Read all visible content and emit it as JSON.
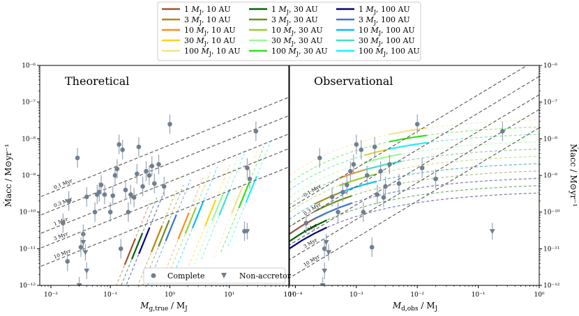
{
  "chart_data": [
    {
      "type": "scatter",
      "title": "Theoretical",
      "xlabel": "M_g,true / M_J",
      "ylabel": "Ṁ_acc / M_⊙yr⁻¹",
      "xscale": "log",
      "yscale": "log",
      "xlim": [
        0.0065,
        100
      ],
      "ylim": [
        1e-12,
        1e-06
      ],
      "x_tick_labels": [
        "10⁻²",
        "10⁻¹",
        "10⁰",
        "10¹",
        "10²"
      ],
      "x_tick_values": [
        0.01,
        0.1,
        1,
        10,
        100
      ],
      "y_tick_labels": [
        "10⁻¹²",
        "10⁻¹¹",
        "10⁻¹⁰",
        "10⁻⁹",
        "10⁻⁸",
        "10⁻⁷",
        "10⁻⁶"
      ],
      "y_tick_values": [
        1e-12,
        1e-11,
        1e-10,
        1e-09,
        1e-08,
        1e-07,
        1e-06
      ],
      "age_lines": [
        {
          "label": "0.1 Myr",
          "logx0": -2.2,
          "logy0": -9.6
        },
        {
          "label": "0.3 Myr",
          "logx0": -2.2,
          "logy0": -10.1
        },
        {
          "label": "1 Myr",
          "logx0": -2.2,
          "logy0": -10.6
        },
        {
          "label": "3 Myr",
          "logx0": -2.2,
          "logy0": -11.0
        },
        {
          "label": "10 Myr",
          "logx0": -2.2,
          "logy0": -11.5
        }
      ],
      "age_line_slope": 0.65,
      "complete_points": [
        {
          "x": 0.016,
          "y": 5e-11
        },
        {
          "x": 0.019,
          "y": 4.5e-12
        },
        {
          "x": 0.02,
          "y": 2e-10
        },
        {
          "x": 0.028,
          "y": 3e-09
        },
        {
          "x": 0.032,
          "y": 1.1e-11
        },
        {
          "x": 0.035,
          "y": 2.5e-11
        },
        {
          "x": 0.04,
          "y": 2.6e-10
        },
        {
          "x": 0.055,
          "y": 1e-10
        },
        {
          "x": 0.06,
          "y": 3e-10
        },
        {
          "x": 0.065,
          "y": 3.5e-10
        },
        {
          "x": 0.07,
          "y": 5.5e-10
        },
        {
          "x": 0.08,
          "y": 3e-10
        },
        {
          "x": 0.1,
          "y": 1e-10
        },
        {
          "x": 0.11,
          "y": 2.8e-10
        },
        {
          "x": 0.12,
          "y": 1e-09
        },
        {
          "x": 0.13,
          "y": 1.5e-09
        },
        {
          "x": 0.14,
          "y": 7e-09
        },
        {
          "x": 0.15,
          "y": 1e-11
        },
        {
          "x": 0.16,
          "y": 5e-09
        },
        {
          "x": 0.18,
          "y": 4e-10
        },
        {
          "x": 0.2,
          "y": 1e-10
        },
        {
          "x": 0.22,
          "y": 3e-10
        },
        {
          "x": 0.25,
          "y": 2.5e-10
        },
        {
          "x": 0.3,
          "y": 6e-09
        },
        {
          "x": 0.35,
          "y": 5e-10
        },
        {
          "x": 0.4,
          "y": 1.3e-09
        },
        {
          "x": 0.5,
          "y": 1.8e-09
        },
        {
          "x": 0.55,
          "y": 6e-10
        },
        {
          "x": 0.65,
          "y": 2e-09
        },
        {
          "x": 0.8,
          "y": 5e-10
        },
        {
          "x": 1.0,
          "y": 2.5e-08
        },
        {
          "x": 0.45,
          "y": 1e-09
        },
        {
          "x": 0.28,
          "y": 1.1e-09
        },
        {
          "x": 20,
          "y": 1.6e-09
        },
        {
          "x": 22,
          "y": 8e-10
        },
        {
          "x": 18,
          "y": 3e-11
        },
        {
          "x": 28,
          "y": 1.6e-08
        }
      ],
      "nonaccretor_points": [
        {
          "x": 0.03,
          "y": 1e-12
        },
        {
          "x": 0.035,
          "y": 1.5e-11
        },
        {
          "x": 0.038,
          "y": 8e-12
        },
        {
          "x": 0.04,
          "y": 2.5e-12
        },
        {
          "x": 20,
          "y": 3e-11
        }
      ],
      "legend": {
        "location": "lower right",
        "entries": [
          "Complete",
          "Non-accretor"
        ]
      }
    },
    {
      "type": "scatter",
      "title": "Observational",
      "xlabel": "M_d,obs / M_J",
      "ylabel": "Ṁ_acc / M_⊙yr⁻¹",
      "xscale": "log",
      "yscale": "log",
      "xlim": [
        8e-05,
        1
      ],
      "ylim": [
        1e-12,
        1e-06
      ],
      "x_tick_labels": [
        "10⁻⁴",
        "10⁻³",
        "10⁻²",
        "10⁻¹",
        "10⁰"
      ],
      "x_tick_values": [
        0.0001,
        0.001,
        0.01,
        0.1,
        1
      ],
      "y_tick_labels": [
        "10⁻¹²",
        "10⁻¹¹",
        "10⁻¹⁰",
        "10⁻⁹",
        "10⁻⁸",
        "10⁻⁷",
        "10⁻⁶"
      ],
      "y_tick_values": [
        1e-12,
        1e-11,
        1e-10,
        1e-09,
        1e-08,
        1e-07,
        1e-06
      ],
      "age_lines": [
        {
          "label": "0.1 Myr",
          "logx0": -4.1,
          "logy0": -9.9
        },
        {
          "label": "0.3 Myr",
          "logx0": -4.1,
          "logy0": -10.4
        },
        {
          "label": "1 Myr",
          "logx0": -4.1,
          "logy0": -10.9
        },
        {
          "label": "3 Myr",
          "logx0": -4.1,
          "logy0": -11.3
        },
        {
          "label": "10 Myr",
          "logx0": -4.1,
          "logy0": -11.8
        }
      ],
      "age_line_slope": 1.0,
      "complete_points": [
        {
          "x": 0.00015,
          "y": 5e-11
        },
        {
          "x": 0.00025,
          "y": 3e-09
        },
        {
          "x": 0.0003,
          "y": 1e-11
        },
        {
          "x": 0.0004,
          "y": 2.6e-10
        },
        {
          "x": 0.0005,
          "y": 1e-10
        },
        {
          "x": 0.0006,
          "y": 3.5e-10
        },
        {
          "x": 0.0007,
          "y": 5.5e-10
        },
        {
          "x": 0.0008,
          "y": 1.3e-09
        },
        {
          "x": 0.0009,
          "y": 2e-09
        },
        {
          "x": 0.001,
          "y": 7e-09
        },
        {
          "x": 0.0012,
          "y": 5e-09
        },
        {
          "x": 0.0015,
          "y": 1e-09
        },
        {
          "x": 0.0018,
          "y": 1.1e-11
        },
        {
          "x": 0.002,
          "y": 6e-09
        },
        {
          "x": 0.0025,
          "y": 1.3e-09
        },
        {
          "x": 0.003,
          "y": 5e-10
        },
        {
          "x": 0.0035,
          "y": 2e-09
        },
        {
          "x": 0.005,
          "y": 6e-10
        },
        {
          "x": 0.01,
          "y": 2.5e-08
        },
        {
          "x": 0.012,
          "y": 1.6e-09
        },
        {
          "x": 0.02,
          "y": 8e-10
        },
        {
          "x": 0.25,
          "y": 1.6e-08
        },
        {
          "x": 0.0022,
          "y": 3e-10
        },
        {
          "x": 0.0028,
          "y": 2.5e-10
        },
        {
          "x": 0.0013,
          "y": 1e-10
        }
      ],
      "nonaccretor_points": [
        {
          "x": 0.00028,
          "y": 1e-12
        },
        {
          "x": 0.00032,
          "y": 1.5e-11
        },
        {
          "x": 0.00035,
          "y": 8e-12
        },
        {
          "x": 0.0003,
          "y": 2.5e-12
        },
        {
          "x": 0.17,
          "y": 3e-11
        }
      ]
    }
  ],
  "legend": {
    "entries": [
      {
        "label": "1 M_J, 10 AU",
        "color": "#a0522d"
      },
      {
        "label": "3 M_J, 10 AU",
        "color": "#b8860b"
      },
      {
        "label": "10 M_J, 10 AU",
        "color": "#ff8c1a"
      },
      {
        "label": "30 M_J, 10 AU",
        "color": "#ffd21a"
      },
      {
        "label": "100 M_J, 10 AU",
        "color": "#f6e08e"
      },
      {
        "label": "1 M_J, 30 AU",
        "color": "#006400"
      },
      {
        "label": "3 M_J, 30 AU",
        "color": "#6b8e23"
      },
      {
        "label": "10 M_J, 30 AU",
        "color": "#9acd32"
      },
      {
        "label": "30 M_J, 30 AU",
        "color": "#98fb98"
      },
      {
        "label": "100 M_J, 30 AU",
        "color": "#32e01a"
      },
      {
        "label": "1 M_J, 100 AU",
        "color": "#00008b"
      },
      {
        "label": "3 M_J, 100 AU",
        "color": "#3a73d8"
      },
      {
        "label": "10 M_J, 100 AU",
        "color": "#00bfff"
      },
      {
        "label": "30 M_J, 100 AU",
        "color": "#40e0d0"
      },
      {
        "label": "100 M_J, 100 AU",
        "color": "#1af0ff"
      }
    ]
  },
  "point_legend": {
    "complete": "Complete",
    "nonaccretor": "Non-accretor"
  },
  "labels": {
    "left_title": "Theoretical",
    "right_title": "Observational",
    "left_xlabel_main": "M",
    "left_xlabel_sub": "g,true",
    "left_xlabel_tail": " / M",
    "left_xlabel_sub2": "J",
    "right_xlabel_main": "M",
    "right_xlabel_sub": "d,obs",
    "right_xlabel_tail": " / M",
    "right_xlabel_sub2": "J",
    "ylabel_text": "Ṁacc / M⊙yr⁻¹"
  }
}
